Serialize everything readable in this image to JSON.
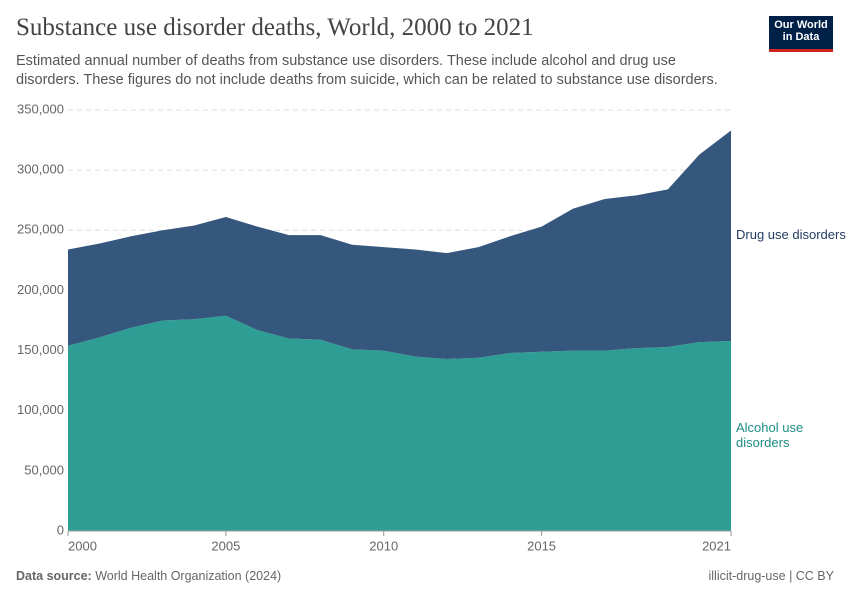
{
  "header": {
    "title": "Substance use disorder deaths, World, 2000 to 2021",
    "subtitle": "Estimated annual number of deaths from substance use disorders. These include alcohol and drug use disorders. These figures do not include deaths from suicide, which can be related to substance use disorders.",
    "logo": [
      "Our World",
      "in Data"
    ]
  },
  "footer": {
    "source_label": "Data source:",
    "source": "World Health Organization (2024)",
    "note": "illicit-drug-use | CC BY"
  },
  "chart_data": {
    "type": "stacked_area",
    "x": [
      2000,
      2001,
      2002,
      2003,
      2004,
      2005,
      2006,
      2007,
      2008,
      2009,
      2010,
      2011,
      2012,
      2013,
      2014,
      2015,
      2016,
      2017,
      2018,
      2019,
      2020,
      2021
    ],
    "series": [
      {
        "name": "Alcohol use disorders",
        "color": "#2e9e95",
        "label_color": "#1d8c84",
        "values": [
          154000,
          161000,
          169000,
          175000,
          176000,
          179000,
          167000,
          160000,
          159000,
          151000,
          150000,
          145000,
          143000,
          144000,
          148000,
          149000,
          150000,
          150000,
          152000,
          153000,
          157000,
          158000
        ]
      },
      {
        "name": "Drug use disorders",
        "color": "#35577d",
        "label_color": "#1f3a5f",
        "values": [
          80000,
          78000,
          76000,
          75000,
          78000,
          82000,
          86000,
          86000,
          87000,
          87000,
          86000,
          89000,
          88000,
          92000,
          97000,
          104000,
          118000,
          126000,
          127000,
          131000,
          156000,
          175000
        ]
      }
    ],
    "xlim": [
      2000,
      2021
    ],
    "xticks": [
      2000,
      2005,
      2010,
      2015,
      2021
    ],
    "ylim": [
      0,
      350000
    ],
    "yticks": [
      0,
      {
        "value": 50000,
        "label": "50,000"
      },
      {
        "value": 100000,
        "label": "100,000"
      },
      {
        "value": 150000,
        "label": "150,000"
      },
      {
        "value": 200000,
        "label": "200,000"
      },
      {
        "value": 250000,
        "label": "250,000"
      },
      {
        "value": 300000,
        "label": "300,000"
      },
      {
        "value": 350000,
        "label": "350,000"
      }
    ],
    "grid": true
  }
}
